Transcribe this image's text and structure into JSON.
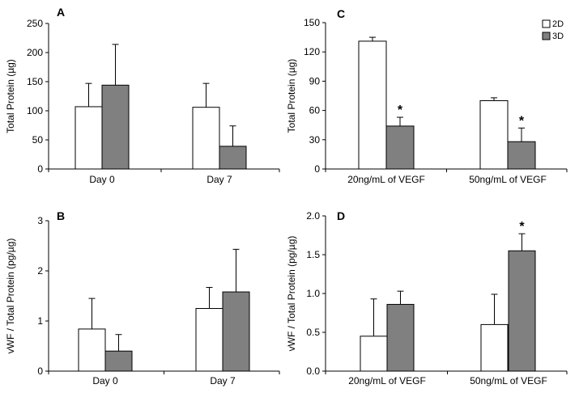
{
  "figure": {
    "legend": {
      "entries": [
        {
          "label": "2D",
          "color": "#ffffff"
        },
        {
          "label": "3D",
          "color": "#808080"
        }
      ]
    }
  },
  "chart_data": [
    {
      "id": "A",
      "type": "bar",
      "panel_label": "A",
      "ylabel": "Total Protein (µg)",
      "xlabel": "",
      "categories": [
        "Day 0",
        "Day 7"
      ],
      "yticks": [
        "0",
        "50",
        "100",
        "150",
        "200",
        "250"
      ],
      "ylim": [
        0,
        250
      ],
      "series": [
        {
          "name": "2D",
          "color": "#ffffff",
          "values": [
            107,
            106
          ],
          "errors": [
            40,
            41
          ]
        },
        {
          "name": "3D",
          "color": "#808080",
          "values": [
            144,
            39
          ],
          "errors": [
            70,
            35
          ]
        }
      ],
      "annotations": []
    },
    {
      "id": "B",
      "type": "bar",
      "panel_label": "B",
      "ylabel": "vWF / Total Protein (pg/µg)",
      "xlabel": "",
      "categories": [
        "Day 0",
        "Day 7"
      ],
      "yticks": [
        "0",
        "1",
        "2",
        "3"
      ],
      "ylim": [
        0,
        3
      ],
      "series": [
        {
          "name": "2D",
          "color": "#ffffff",
          "values": [
            0.84,
            1.25
          ],
          "errors": [
            0.61,
            0.42
          ]
        },
        {
          "name": "3D",
          "color": "#808080",
          "values": [
            0.4,
            1.58
          ],
          "errors": [
            0.33,
            0.85
          ]
        }
      ],
      "annotations": []
    },
    {
      "id": "C",
      "type": "bar",
      "panel_label": "C",
      "ylabel": "Total Protein (µg)",
      "xlabel": "",
      "categories": [
        "20ng/mL of VEGF",
        "50ng/mL of VEGF"
      ],
      "yticks": [
        "0",
        "30",
        "60",
        "90",
        "120",
        "150"
      ],
      "ylim": [
        0,
        150
      ],
      "series": [
        {
          "name": "2D",
          "color": "#ffffff",
          "values": [
            131,
            70
          ],
          "errors": [
            4,
            3
          ]
        },
        {
          "name": "3D",
          "color": "#808080",
          "values": [
            44,
            28
          ],
          "errors": [
            9,
            14
          ]
        }
      ],
      "annotations": [
        {
          "category": 0,
          "series": 1,
          "text": "*"
        },
        {
          "category": 1,
          "series": 1,
          "text": "*"
        }
      ]
    },
    {
      "id": "D",
      "type": "bar",
      "panel_label": "D",
      "ylabel": "vWF / Total Protein (pg/µg)",
      "xlabel": "",
      "categories": [
        "20ng/mL of VEGF",
        "50ng/mL of VEGF"
      ],
      "yticks": [
        "0.0",
        "0.5",
        "1.0",
        "1.5",
        "2.0"
      ],
      "ylim": [
        0,
        2
      ],
      "series": [
        {
          "name": "2D",
          "color": "#ffffff",
          "values": [
            0.45,
            0.6
          ],
          "errors": [
            0.48,
            0.39
          ]
        },
        {
          "name": "3D",
          "color": "#808080",
          "values": [
            0.86,
            1.55
          ],
          "errors": [
            0.17,
            0.22
          ]
        }
      ],
      "annotations": [
        {
          "category": 1,
          "series": 1,
          "text": "*"
        }
      ]
    }
  ]
}
